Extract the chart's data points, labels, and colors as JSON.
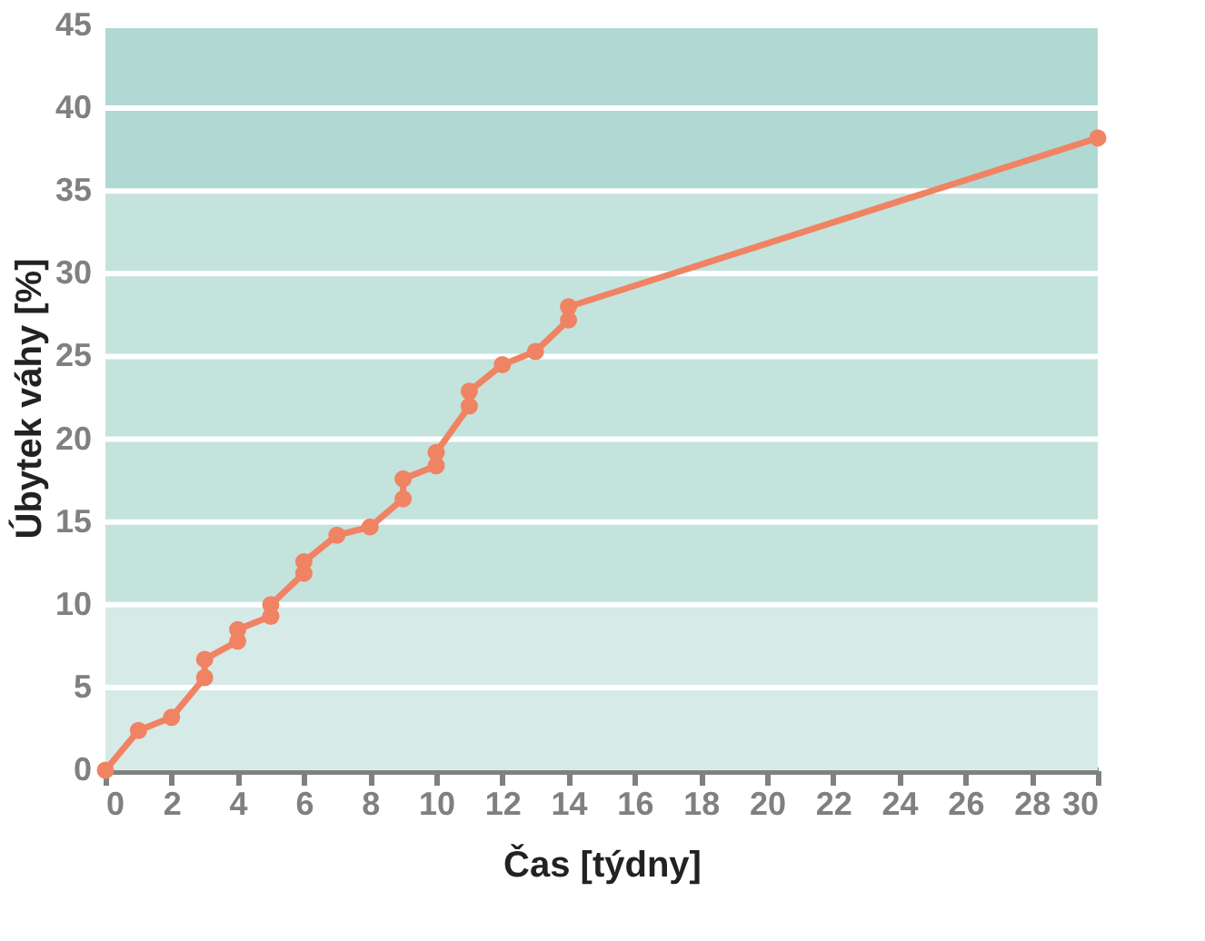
{
  "chart_data": {
    "type": "line",
    "xlabel": "Čas [týdny]",
    "ylabel": "Úbytek váhy [%]",
    "x": [
      0,
      1,
      2,
      3,
      3,
      4,
      4,
      5,
      5,
      6,
      6,
      7,
      8,
      9,
      9,
      10,
      10,
      11,
      11,
      12,
      13,
      14,
      14,
      30
    ],
    "series": [
      {
        "color": "#f08363",
        "values": [
          0,
          2.4,
          3.2,
          5.6,
          6.7,
          7.8,
          8.5,
          9.3,
          10,
          11.9,
          12.6,
          14.2,
          14.7,
          16.4,
          17.6,
          18.4,
          19.2,
          22,
          22.9,
          24.5,
          25.3,
          27.2,
          28,
          38.2
        ]
      }
    ],
    "xlim": [
      0,
      30
    ],
    "xticks": [
      0,
      2,
      4,
      6,
      8,
      10,
      12,
      14,
      16,
      18,
      20,
      22,
      24,
      26,
      28,
      30
    ],
    "ylim": [
      0,
      45
    ],
    "yticks": [
      0,
      5,
      10,
      15,
      20,
      25,
      30,
      35,
      40,
      45
    ],
    "bands": [
      {
        "axis": "y",
        "from": 0,
        "to": 10,
        "color": "#d6ebe7"
      },
      {
        "axis": "y",
        "from": 10,
        "to": 35,
        "color": "#c4e3dd"
      },
      {
        "axis": "y",
        "from": 35,
        "to": 45,
        "color": "#b1d9d4"
      }
    ],
    "grid": "y",
    "marker": "circle",
    "line_style": "solid",
    "legend": false
  }
}
